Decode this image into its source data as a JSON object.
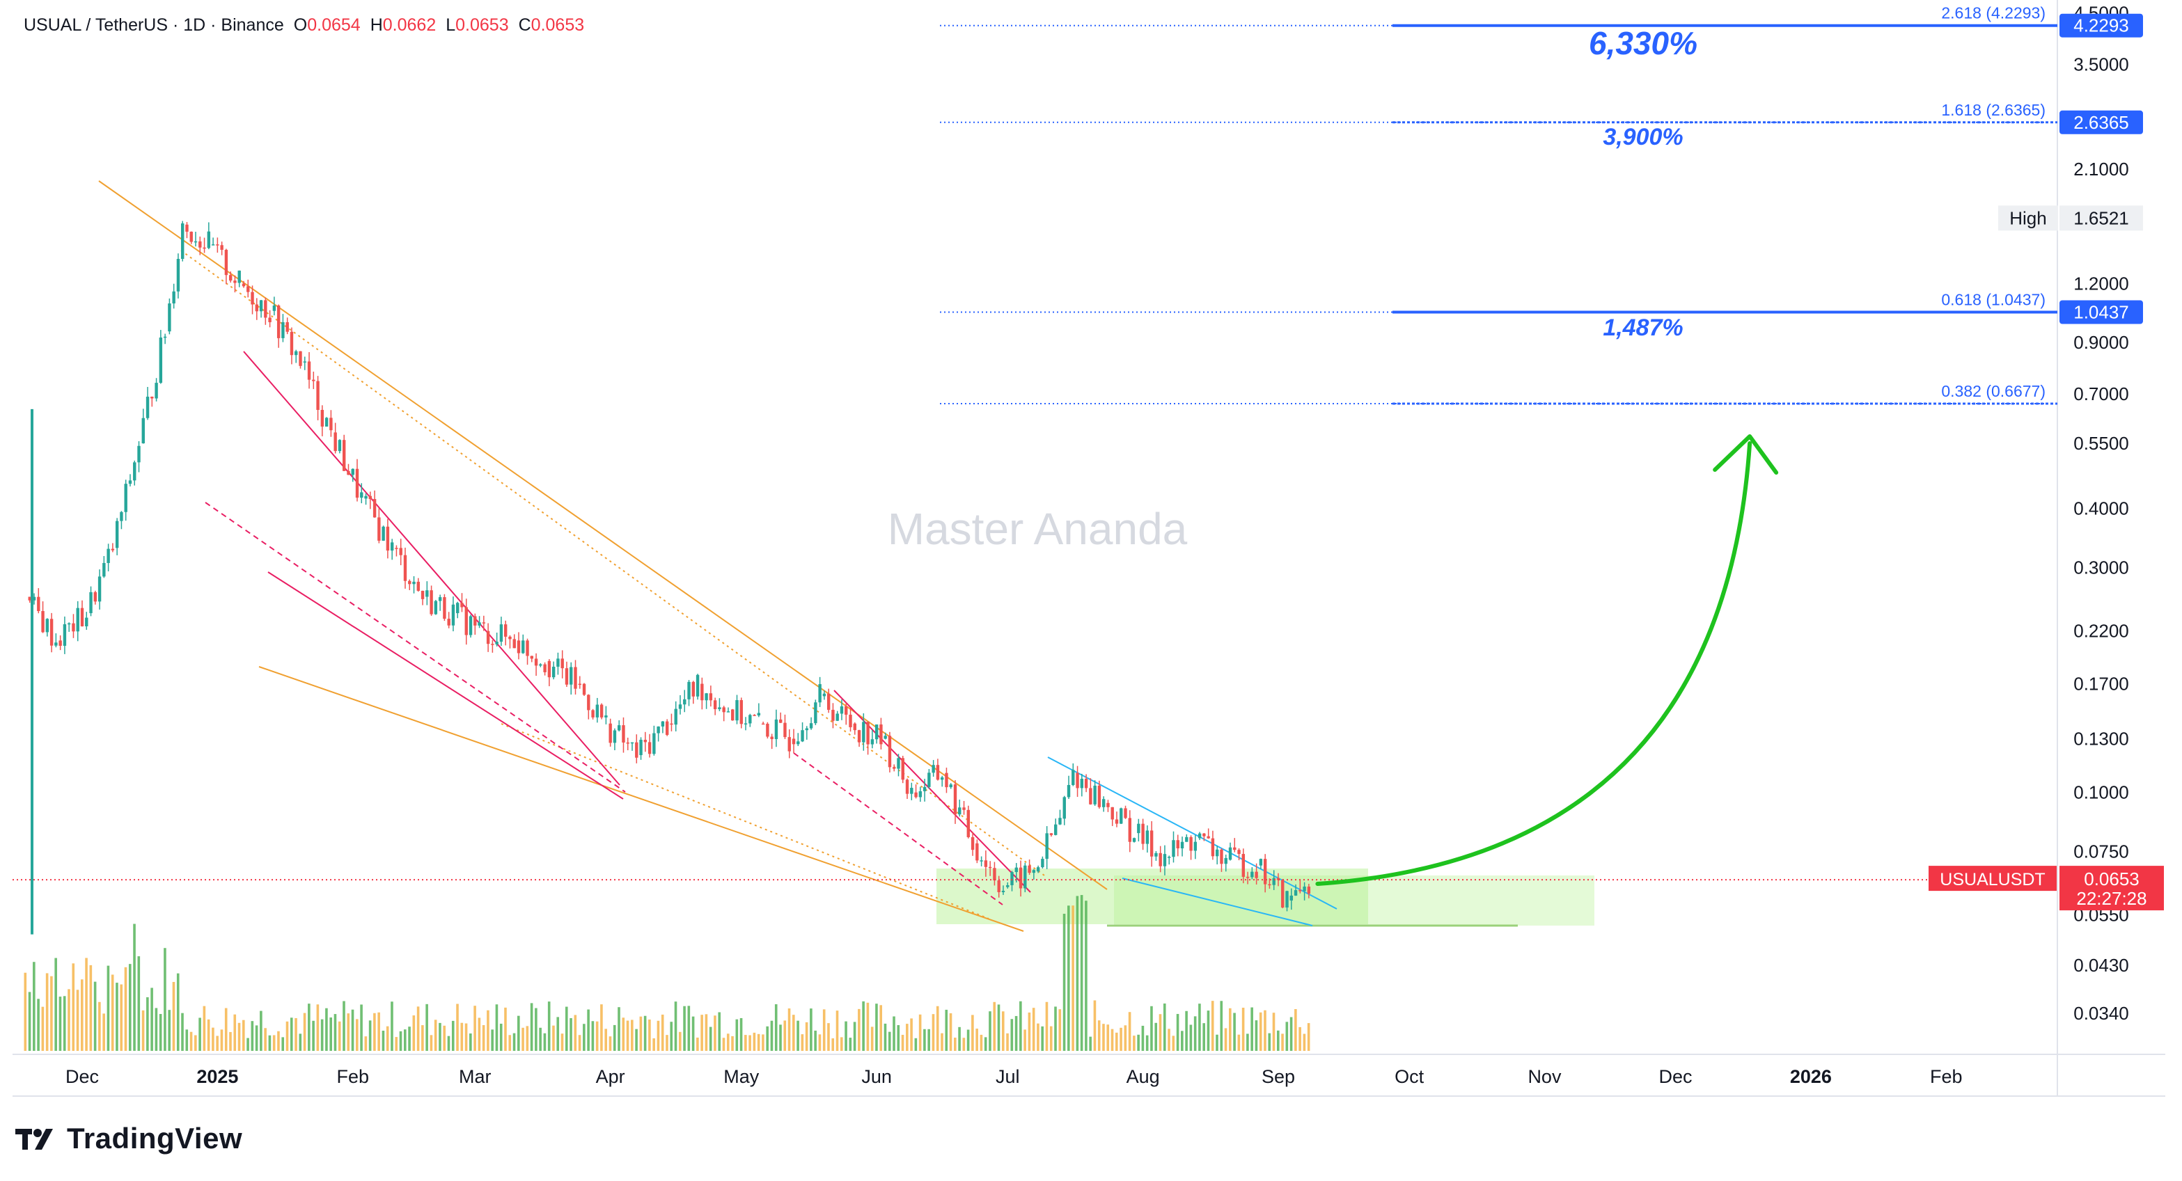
{
  "header": {
    "symbol": "USUAL / TetherUS · 1D · Binance",
    "open_label": "O",
    "open": "0.0654",
    "high_label": "H",
    "high": "0.0662",
    "low_label": "L",
    "low": "0.0653",
    "close_label": "C",
    "close": "0.0653"
  },
  "brand": {
    "name": "TradingView"
  },
  "watermark": "Master Ananda",
  "colors": {
    "up": "#26a69a",
    "down": "#ef5350",
    "fib": "#2962ff",
    "wedge_orange": "#f0a030",
    "channel_pink": "#e91e63",
    "wedge_blue": "#29b6f6",
    "arrow": "#1ec21e",
    "price_line": "#f23645",
    "zone": "#b2f08c",
    "vol_up": "#4caf50",
    "vol_down": "#f5b041"
  },
  "chart_data": {
    "type": "candlestick",
    "title": "USUAL / TetherUS · 1D · Binance",
    "yscale": "log",
    "ylim": [
      0.03,
      4.6
    ],
    "y_ticks": [
      "4.5000",
      "3.5000",
      "2.1000",
      "1.2000",
      "0.9000",
      "0.7000",
      "0.5500",
      "0.4000",
      "0.3000",
      "0.2200",
      "0.1700",
      "0.1300",
      "0.1000",
      "0.0750",
      "0.0550",
      "0.0430",
      "0.0340"
    ],
    "x_ticks": [
      {
        "label": "Dec",
        "date": "2024-12-01",
        "bold": false
      },
      {
        "label": "2025",
        "date": "2025-01-01",
        "bold": true
      },
      {
        "label": "Feb",
        "date": "2025-02-01",
        "bold": false
      },
      {
        "label": "Mar",
        "date": "2025-03-01",
        "bold": false
      },
      {
        "label": "Apr",
        "date": "2025-04-01",
        "bold": false
      },
      {
        "label": "May",
        "date": "2025-05-01",
        "bold": false
      },
      {
        "label": "Jun",
        "date": "2025-06-01",
        "bold": false
      },
      {
        "label": "Jul",
        "date": "2025-07-01",
        "bold": false
      },
      {
        "label": "Aug",
        "date": "2025-08-01",
        "bold": false
      },
      {
        "label": "Sep",
        "date": "2025-09-01",
        "bold": false
      },
      {
        "label": "Oct",
        "date": "2025-10-01",
        "bold": false
      },
      {
        "label": "Nov",
        "date": "2025-11-01",
        "bold": false
      },
      {
        "label": "Dec",
        "date": "2025-12-01",
        "bold": false
      },
      {
        "label": "2026",
        "date": "2026-01-01",
        "bold": true
      },
      {
        "label": "Feb",
        "date": "2026-02-01",
        "bold": false
      }
    ],
    "price_path": [
      {
        "date": "2024-11-18",
        "close": 0.26
      },
      {
        "date": "2024-11-25",
        "close": 0.21
      },
      {
        "date": "2024-12-02",
        "close": 0.24
      },
      {
        "date": "2024-12-08",
        "close": 0.33
      },
      {
        "date": "2024-12-14",
        "close": 0.55
      },
      {
        "date": "2024-12-20",
        "close": 0.95
      },
      {
        "date": "2024-12-24",
        "close": 1.6
      },
      {
        "date": "2024-12-30",
        "close": 1.45
      },
      {
        "date": "2025-01-06",
        "close": 1.2
      },
      {
        "date": "2025-01-13",
        "close": 1.05
      },
      {
        "date": "2025-01-20",
        "close": 0.82
      },
      {
        "date": "2025-01-27",
        "close": 0.58
      },
      {
        "date": "2025-02-03",
        "close": 0.42
      },
      {
        "date": "2025-02-10",
        "close": 0.33
      },
      {
        "date": "2025-02-17",
        "close": 0.26
      },
      {
        "date": "2025-02-24",
        "close": 0.24
      },
      {
        "date": "2025-03-03",
        "close": 0.22
      },
      {
        "date": "2025-03-10",
        "close": 0.21
      },
      {
        "date": "2025-03-17",
        "close": 0.19
      },
      {
        "date": "2025-03-24",
        "close": 0.17
      },
      {
        "date": "2025-03-31",
        "close": 0.14
      },
      {
        "date": "2025-04-07",
        "close": 0.12
      },
      {
        "date": "2025-04-14",
        "close": 0.14
      },
      {
        "date": "2025-04-21",
        "close": 0.17
      },
      {
        "date": "2025-04-28",
        "close": 0.15
      },
      {
        "date": "2025-05-05",
        "close": 0.14
      },
      {
        "date": "2025-05-12",
        "close": 0.13
      },
      {
        "date": "2025-05-19",
        "close": 0.16
      },
      {
        "date": "2025-05-26",
        "close": 0.14
      },
      {
        "date": "2025-06-02",
        "close": 0.13
      },
      {
        "date": "2025-06-09",
        "close": 0.1
      },
      {
        "date": "2025-06-16",
        "close": 0.11
      },
      {
        "date": "2025-06-23",
        "close": 0.078
      },
      {
        "date": "2025-06-30",
        "close": 0.063
      },
      {
        "date": "2025-07-07",
        "close": 0.068
      },
      {
        "date": "2025-07-13",
        "close": 0.088
      },
      {
        "date": "2025-07-16",
        "close": 0.11
      },
      {
        "date": "2025-07-23",
        "close": 0.095
      },
      {
        "date": "2025-07-30",
        "close": 0.082
      },
      {
        "date": "2025-08-06",
        "close": 0.073
      },
      {
        "date": "2025-08-13",
        "close": 0.08
      },
      {
        "date": "2025-08-20",
        "close": 0.072
      },
      {
        "date": "2025-08-27",
        "close": 0.07
      },
      {
        "date": "2025-09-03",
        "close": 0.059
      },
      {
        "date": "2025-09-08",
        "close": 0.0653
      }
    ],
    "high": {
      "label": "High",
      "value": "1.6521"
    },
    "last_price": {
      "symbol": "USUALUSDT",
      "value": "0.0653",
      "countdown": "22:27:28"
    },
    "fib_levels": [
      {
        "ratio": "2.618",
        "price": "4.2293",
        "badge": true,
        "solid": true
      },
      {
        "ratio": "1.618",
        "price": "2.6365",
        "badge": true,
        "solid": false
      },
      {
        "ratio": "0.618",
        "price": "1.0437",
        "badge": true,
        "solid": true
      },
      {
        "ratio": "0.382",
        "price": "0.6677",
        "badge": false,
        "solid": false
      }
    ],
    "targets": [
      {
        "label": "6,330%",
        "price": 4.2293
      },
      {
        "label": "3,900%",
        "price": 2.6365
      },
      {
        "label": "1,487%",
        "price": 1.0437
      }
    ],
    "projection": {
      "from_date": "2025-09-10",
      "from_price": 0.064,
      "to_date": "2025-12-18",
      "to_price": 0.55
    }
  }
}
